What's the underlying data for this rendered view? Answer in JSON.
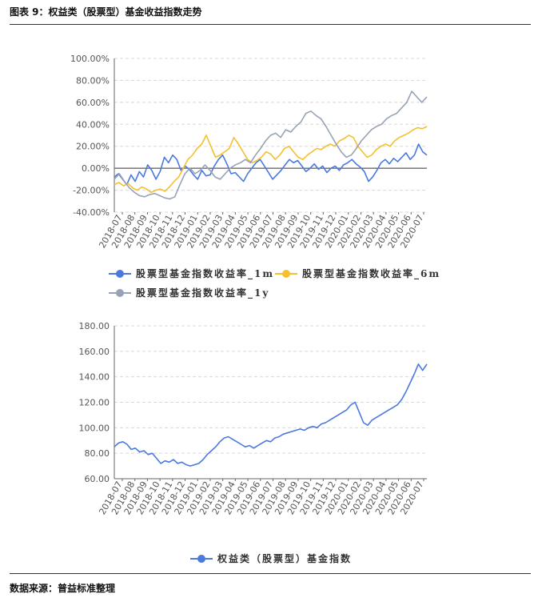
{
  "figure": {
    "title": "图表 9：权益类（股票型）基金收益指数走势",
    "source": "数据来源：普益标准整理"
  },
  "colors": {
    "blue": "#4b79e0",
    "yellow": "#f5c02c",
    "gray": "#98a2b6",
    "grid": "#d8d8d8",
    "axis": "#666666"
  },
  "chart_data": [
    {
      "type": "line",
      "x_labels": [
        "2018-07",
        "2018-08",
        "2018-09",
        "2018-10",
        "2018-11",
        "2018-12",
        "2019-01",
        "2019-02",
        "2019-03",
        "2019-04",
        "2019-05",
        "2019-06",
        "2019-07",
        "2019-08",
        "2019-09",
        "2019-10",
        "2019-11",
        "2019-12",
        "2020-01",
        "2020-02",
        "2020-03",
        "2020-04",
        "2020-05",
        "2020-06",
        "2020-07"
      ],
      "y_ticks": [
        "100.00%",
        "80.00%",
        "60.00%",
        "40.00%",
        "20.00%",
        "0.00%",
        "-20.00%",
        "-40.00%"
      ],
      "ylim": [
        -40,
        100
      ],
      "y_unit": "%",
      "legend_position": "bottom",
      "series": [
        {
          "name": "股票型基金指数收益率_1m",
          "color": "blue",
          "values": [
            -8,
            -5,
            -10,
            -15,
            -6,
            -12,
            -3,
            -8,
            3,
            -2,
            -10,
            -3,
            10,
            5,
            12,
            8,
            -2,
            2,
            -1,
            -6,
            -10,
            -2,
            -7,
            -6,
            2,
            8,
            12,
            4,
            -5,
            -4,
            -8,
            -12,
            -5,
            0,
            5,
            8,
            2,
            -4,
            -10,
            -6,
            -2,
            3,
            8,
            5,
            7,
            2,
            -3,
            0,
            4,
            -1,
            2,
            -4,
            0,
            2,
            -2,
            3,
            5,
            8,
            4,
            1,
            -3,
            -12,
            -8,
            -2,
            5,
            8,
            4,
            9,
            6,
            10,
            14,
            8,
            12,
            22,
            15,
            12
          ]
        },
        {
          "name": "股票型基金指数收益率_6m",
          "color": "yellow",
          "values": [
            -15,
            -13,
            -16,
            -14,
            -18,
            -20,
            -17,
            -19,
            -22,
            -20,
            -19,
            -21,
            -17,
            -12,
            -8,
            0,
            8,
            12,
            18,
            22,
            30,
            20,
            10,
            12,
            15,
            18,
            28,
            22,
            15,
            8,
            5,
            7,
            10,
            15,
            13,
            8,
            12,
            18,
            20,
            15,
            10,
            8,
            12,
            15,
            18,
            17,
            20,
            22,
            20,
            25,
            27,
            30,
            28,
            20,
            15,
            10,
            12,
            17,
            20,
            22,
            20,
            25,
            28,
            30,
            32,
            35,
            37,
            36,
            38
          ]
        },
        {
          "name": "股票型基金指数收益率_1y",
          "color": "gray",
          "values": [
            -10,
            -5,
            -12,
            -18,
            -22,
            -25,
            -26,
            -24,
            -23,
            -25,
            -27,
            -28,
            -26,
            -15,
            -5,
            0,
            -5,
            -2,
            3,
            -2,
            -8,
            -10,
            -5,
            0,
            3,
            5,
            8,
            5,
            12,
            18,
            25,
            30,
            32,
            28,
            35,
            33,
            38,
            42,
            50,
            52,
            48,
            45,
            38,
            30,
            22,
            15,
            10,
            12,
            18,
            25,
            30,
            35,
            38,
            40,
            45,
            48,
            50,
            55,
            60,
            70,
            65,
            60,
            65
          ]
        }
      ]
    },
    {
      "type": "line",
      "x_labels": [
        "2018-07",
        "2018-08",
        "2018-09",
        "2018-10",
        "2018-11",
        "2018-12",
        "2019-01",
        "2019-02",
        "2019-03",
        "2019-04",
        "2019-05",
        "2019-06",
        "2019-07",
        "2019-08",
        "2019-09",
        "2019-10",
        "2019-11",
        "2019-12",
        "2020-01",
        "2020-02",
        "2020-03",
        "2020-04",
        "2020-05",
        "2020-06",
        "2020-07"
      ],
      "y_ticks": [
        "180.00",
        "160.00",
        "140.00",
        "120.00",
        "100.00",
        "80.00",
        "60.00"
      ],
      "ylim": [
        60,
        180
      ],
      "legend_position": "bottom",
      "series": [
        {
          "name": "权益类（股票型）基金指数",
          "color": "blue",
          "values": [
            85,
            88,
            89,
            87,
            83,
            84,
            81,
            82,
            79,
            80,
            76,
            72,
            74,
            73,
            75,
            72,
            73,
            71,
            70,
            71,
            72,
            75,
            79,
            82,
            85,
            89,
            92,
            93,
            91,
            89,
            87,
            85,
            86,
            84,
            86,
            88,
            90,
            89,
            92,
            93,
            95,
            96,
            97,
            98,
            99,
            98,
            100,
            101,
            100,
            103,
            104,
            106,
            108,
            110,
            112,
            114,
            118,
            120,
            112,
            104,
            102,
            106,
            108,
            110,
            112,
            114,
            116,
            118,
            122,
            128,
            135,
            142,
            150,
            145,
            150
          ]
        }
      ]
    }
  ]
}
